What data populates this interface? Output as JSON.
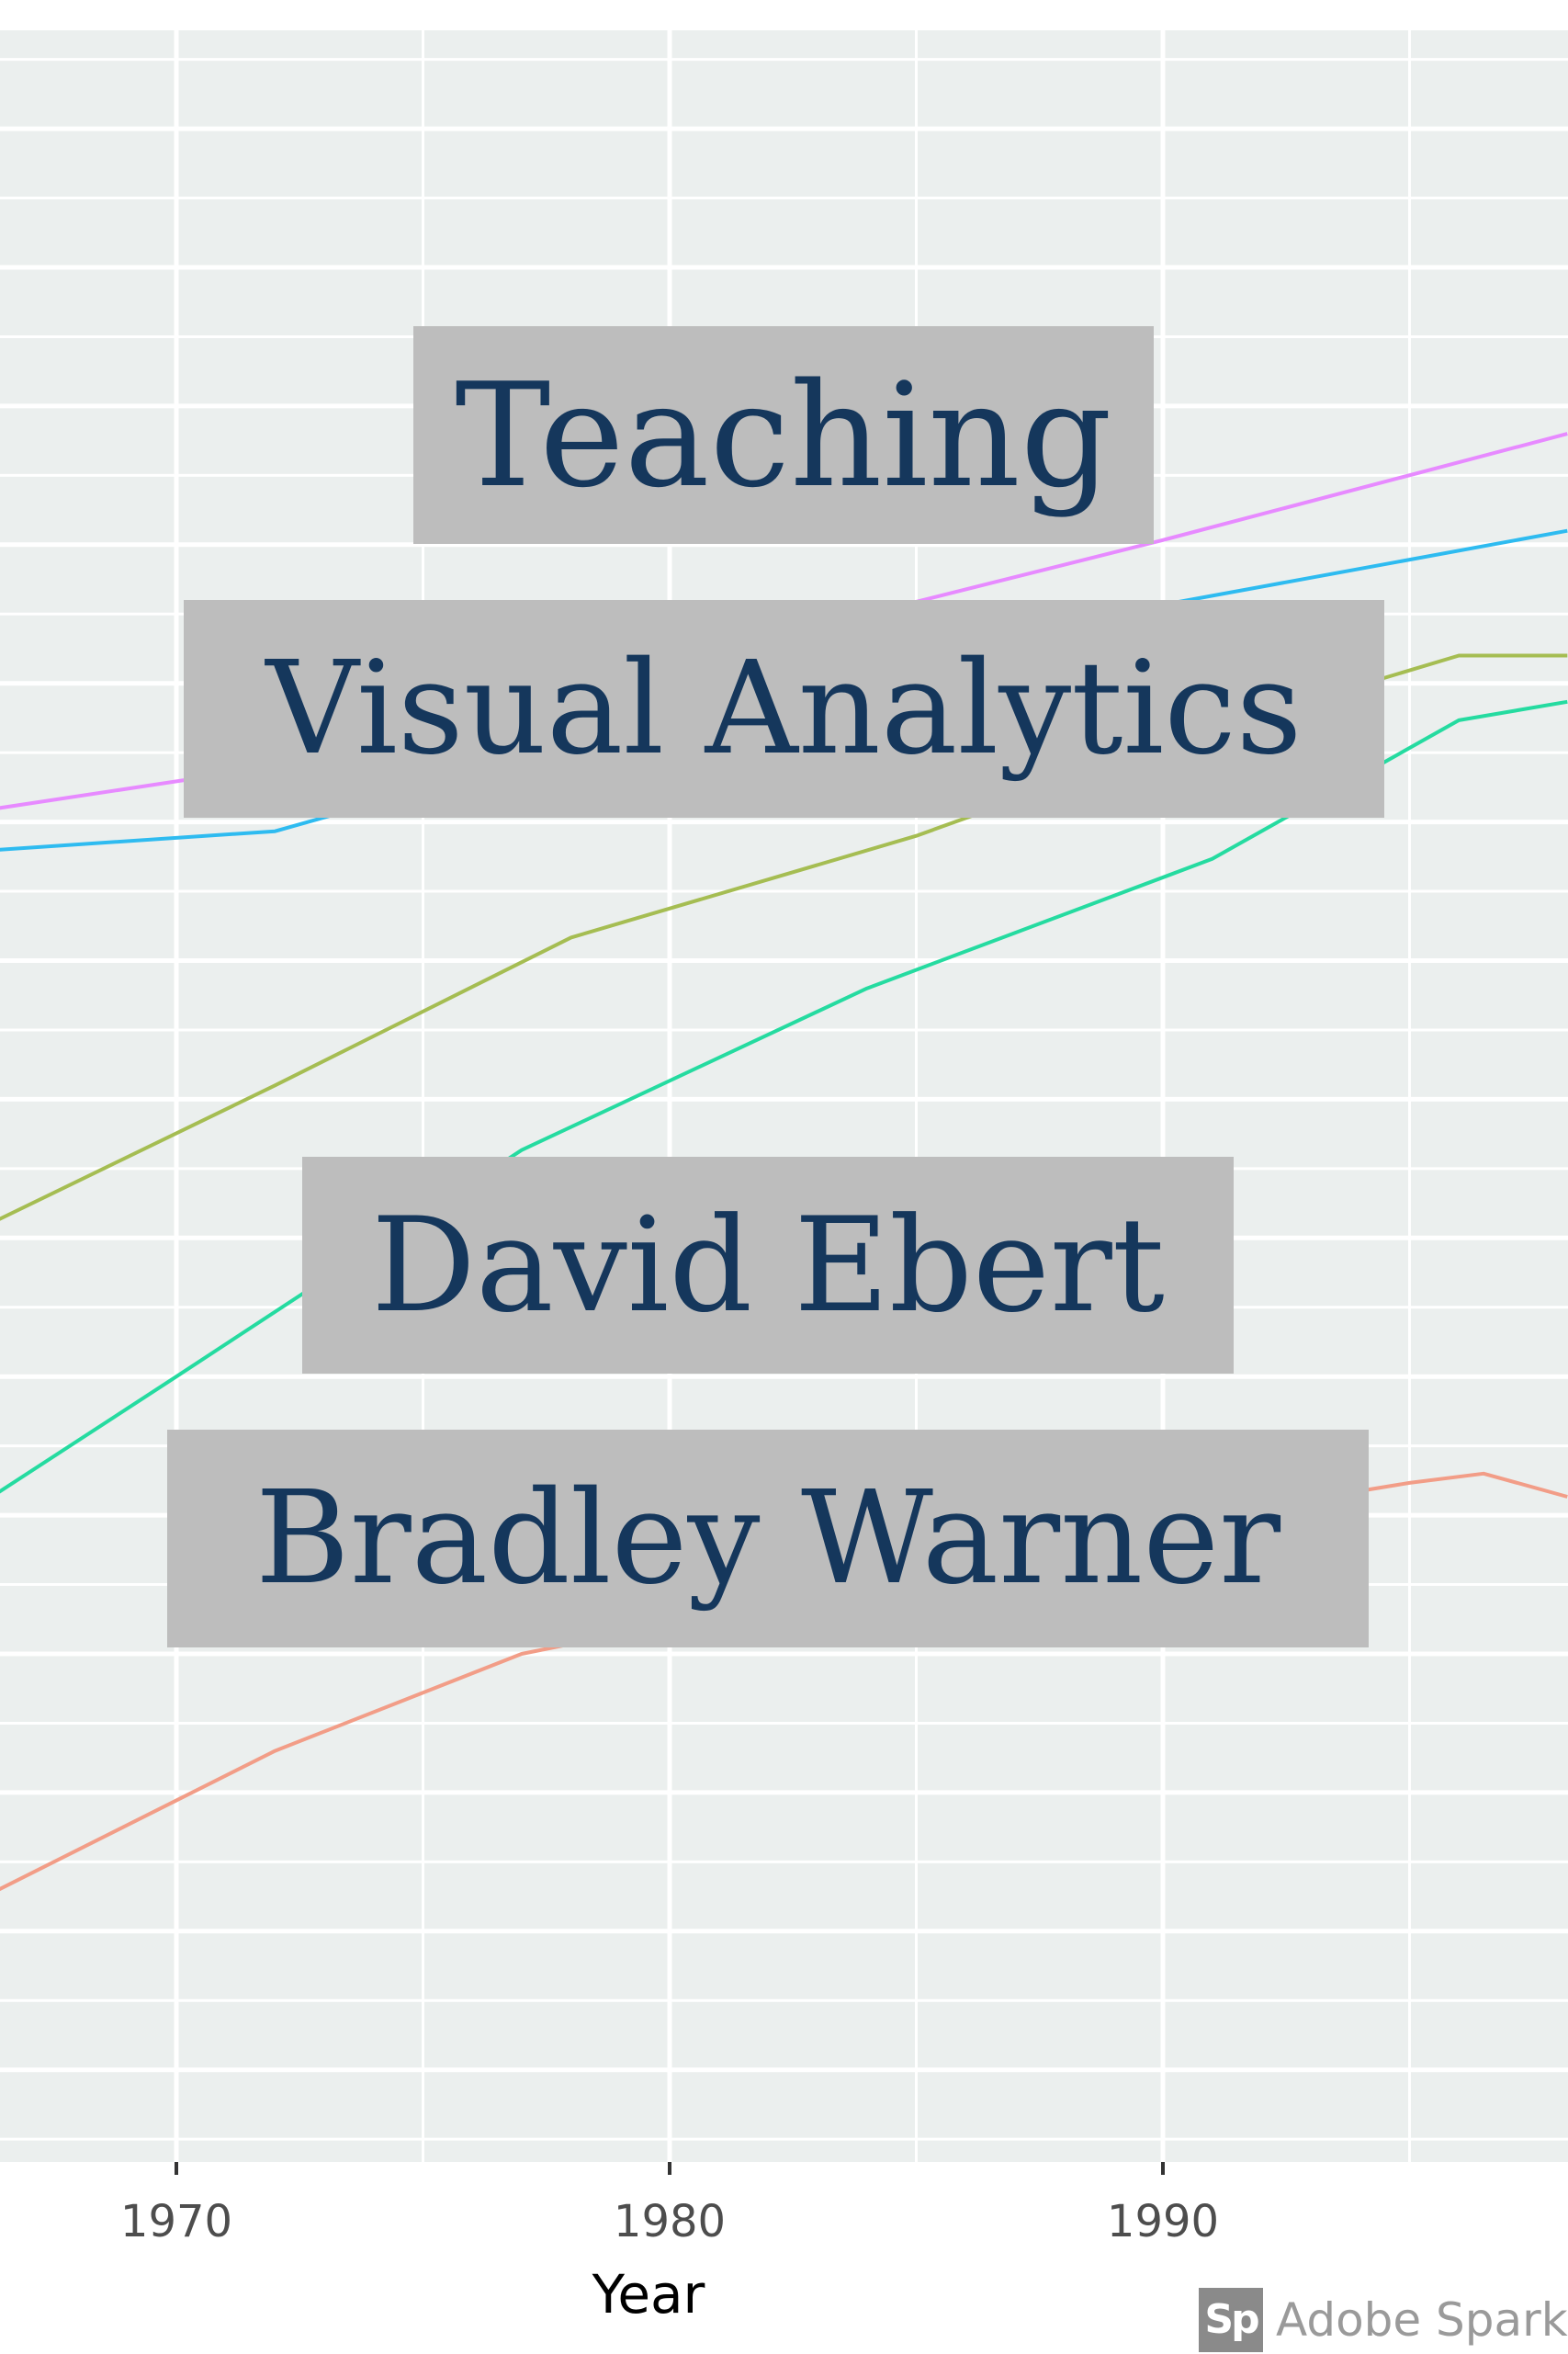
{
  "title_lines": {
    "line1": "Teaching",
    "line2": "Visual Analytics",
    "author1": "David Ebert",
    "author2": "Bradley Warner"
  },
  "chart_data": {
    "type": "line",
    "xlabel": "Year",
    "ylabel": "",
    "x_ticks": [
      "1970",
      "1980",
      "1990"
    ],
    "xlim": [
      1966.4,
      1998.2
    ],
    "y_ticks_shown": false,
    "grid": true,
    "legend": "none",
    "colors": {
      "panel_background": "#ebefee",
      "grid": "#ffffff",
      "title_box": "#bdbdbd",
      "title_text": "#15375c"
    },
    "series": [
      {
        "color": "#e78aff",
        "x": [
          1966.4,
          1972,
          1978,
          1984,
          1990,
          1998.2
        ],
        "y": [
          18.3,
          19.2,
          21.0,
          22.5,
          24.1,
          26.4
        ]
      },
      {
        "color": "#2ebbf0",
        "x": [
          1966.4,
          1972,
          1978,
          1984,
          1990,
          1998.2
        ],
        "y": [
          17.4,
          17.8,
          19.6,
          21.5,
          22.7,
          24.3
        ]
      },
      {
        "color": "#a5bd52",
        "x": [
          1966.4,
          1972,
          1978,
          1985,
          1991,
          1996,
          1998.2
        ],
        "y": [
          9.4,
          12.3,
          15.5,
          17.7,
          20.0,
          21.6,
          21.6
        ]
      },
      {
        "color": "#25dba0",
        "x": [
          1966.4,
          1970,
          1977,
          1984,
          1991,
          1996,
          1998.2
        ],
        "y": [
          3.5,
          6.0,
          10.9,
          14.4,
          17.2,
          20.2,
          20.6
        ]
      },
      {
        "color": "#f29d87",
        "x": [
          1966.4,
          1972,
          1977,
          1984,
          1991,
          1995,
          1996.5,
          1998.2
        ],
        "y": [
          -5.1,
          -2.1,
          0.0,
          1.5,
          3.0,
          3.7,
          3.9,
          3.4
        ]
      }
    ]
  },
  "watermark": {
    "logo_text": "Sp",
    "text": "Adobe Spark"
  }
}
